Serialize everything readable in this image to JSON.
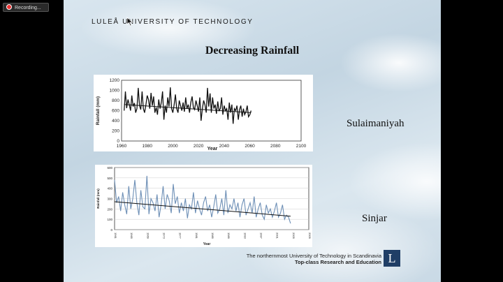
{
  "recording": {
    "label": "Recording..."
  },
  "slide": {
    "university": "LULEÅ UNIVERSITY OF TECHNOLOGY",
    "title": "Decreasing Rainfall",
    "cities": [
      "Sulaimaniyah",
      "Sinjar"
    ],
    "footer_line1": "The northernmost University of Technology in Scandinavia",
    "footer_line2": "Top-class Research and Education",
    "logo_letter": "L",
    "logo_color": "#1f3e66"
  },
  "chart_data": [
    {
      "type": "line",
      "ylabel": "Rainfall (mm)",
      "xlabel": "Year",
      "ylim": [
        0,
        1200
      ],
      "yticks": [
        0,
        200,
        400,
        600,
        800,
        1000,
        1200
      ],
      "xticks": [
        1960,
        1980,
        2000,
        2020,
        2040,
        2060,
        2080,
        2100
      ],
      "series_color": "#111111",
      "x_start": 1962,
      "x_step": 1,
      "values": [
        600,
        980,
        650,
        820,
        720,
        600,
        900,
        680,
        750,
        560,
        640,
        1050,
        700,
        620,
        980,
        640,
        560,
        720,
        900,
        820,
        640,
        950,
        700,
        880,
        560,
        660,
        520,
        820,
        640,
        760,
        980,
        420,
        700,
        560,
        860,
        680,
        1060,
        640,
        560,
        720,
        920,
        640,
        560,
        800,
        700,
        600,
        760,
        580,
        860,
        640,
        720,
        560,
        760,
        880,
        660,
        620,
        800,
        700,
        580,
        860,
        400,
        640,
        800,
        720,
        560,
        1050,
        680,
        940,
        560,
        860,
        640,
        720,
        540,
        780,
        600,
        640,
        860,
        520,
        700,
        600,
        640,
        420,
        760,
        560,
        720,
        340,
        640,
        600,
        700,
        420,
        620,
        700,
        480,
        640,
        520,
        580,
        700,
        480,
        520,
        600
      ],
      "trend": [
        720,
        560
      ]
    },
    {
      "type": "line",
      "ylabel": "Rainfall (mm)",
      "xlabel": "Year",
      "ylim": [
        0,
        600
      ],
      "yticks": [
        0,
        100,
        200,
        300,
        400,
        500,
        600
      ],
      "xticks": [
        1961,
        1965,
        1969,
        1973,
        1977,
        1981,
        1985,
        1989,
        1993,
        1997,
        2001,
        2005,
        2009
      ],
      "series_color": "#6d8fb6",
      "x_start": 1961,
      "x_step": 0.5,
      "values": [
        480,
        260,
        320,
        180,
        360,
        240,
        150,
        420,
        200,
        300,
        480,
        260,
        140,
        380,
        220,
        200,
        520,
        150,
        300,
        260,
        180,
        340,
        120,
        240,
        420,
        200,
        340,
        280,
        160,
        440,
        250,
        320,
        160,
        260,
        180,
        300,
        110,
        240,
        200,
        360,
        160,
        280,
        200,
        140,
        260,
        320,
        180,
        240,
        120,
        220,
        340,
        160,
        200,
        300,
        140,
        380,
        160,
        240,
        200,
        300,
        180,
        260,
        120,
        240,
        300,
        140,
        200,
        260,
        160,
        320,
        120,
        200,
        260,
        140,
        100,
        240,
        160,
        200,
        120,
        180,
        260,
        120,
        160,
        240,
        100,
        140,
        120,
        60
      ],
      "trend": [
        270,
        130
      ]
    }
  ]
}
